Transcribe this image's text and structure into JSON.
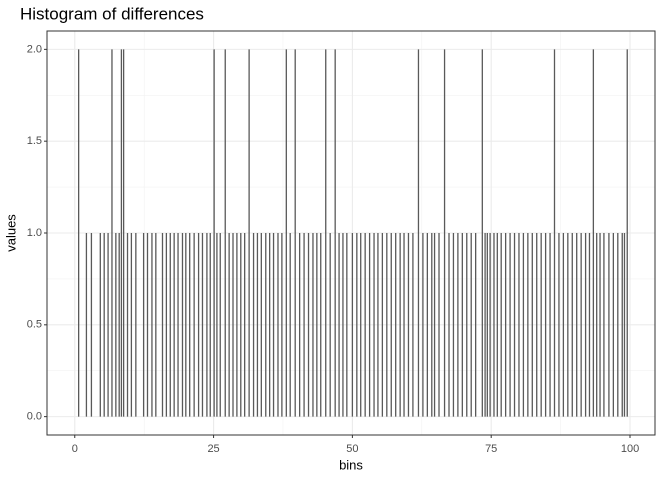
{
  "chart_data": {
    "type": "bar",
    "title": "Histogram of differences",
    "xlabel": "bins",
    "ylabel": "values",
    "x": [
      0.7,
      2.1,
      3.0,
      4.6,
      5.3,
      6.0,
      6.7,
      7.4,
      8.0,
      8.4,
      8.8,
      9.5,
      10.2,
      11.0,
      12.4,
      13.1,
      13.9,
      14.6,
      15.8,
      16.5,
      17.2,
      17.9,
      18.6,
      19.4,
      20.0,
      20.7,
      21.5,
      22.3,
      23.0,
      23.8,
      24.4,
      25.1,
      25.6,
      26.2,
      27.1,
      27.8,
      28.5,
      29.2,
      29.9,
      30.6,
      31.4,
      32.2,
      32.9,
      33.6,
      34.4,
      35.1,
      35.8,
      36.6,
      37.3,
      38.1,
      38.8,
      39.7,
      40.5,
      41.3,
      42.1,
      42.9,
      43.6,
      44.3,
      45.2,
      46.0,
      46.9,
      47.6,
      48.3,
      49.0,
      50.0,
      50.8,
      51.5,
      52.3,
      53.1,
      53.9,
      54.6,
      55.4,
      56.2,
      57.0,
      57.8,
      58.6,
      59.3,
      60.1,
      60.9,
      61.9,
      62.7,
      63.5,
      64.3,
      64.8,
      65.6,
      66.6,
      67.4,
      68.2,
      69.0,
      69.8,
      70.6,
      71.4,
      72.2,
      73.4,
      73.9,
      74.3,
      74.8,
      75.5,
      76.1,
      76.8,
      77.6,
      78.4,
      79.2,
      80.0,
      80.8,
      81.6,
      82.4,
      83.2,
      84.0,
      84.8,
      85.6,
      86.4,
      87.2,
      88.0,
      88.8,
      89.6,
      90.4,
      91.2,
      92.0,
      92.7,
      93.4,
      94.0,
      94.6,
      95.3,
      96.2,
      97.0,
      97.8,
      98.6,
      99.0,
      99.5
    ],
    "values": [
      2,
      1,
      1,
      1,
      1,
      1,
      2,
      1,
      1,
      2,
      2,
      1,
      1,
      1,
      1,
      1,
      1,
      1,
      1,
      1,
      1,
      1,
      1,
      1,
      1,
      1,
      1,
      1,
      1,
      1,
      1,
      2,
      1,
      1,
      2,
      1,
      1,
      1,
      1,
      1,
      2,
      1,
      1,
      1,
      1,
      1,
      1,
      1,
      1,
      2,
      1,
      2,
      1,
      1,
      1,
      1,
      1,
      1,
      2,
      1,
      2,
      1,
      1,
      1,
      1,
      1,
      1,
      1,
      1,
      1,
      1,
      1,
      1,
      1,
      1,
      1,
      1,
      1,
      1,
      2,
      1,
      1,
      1,
      1,
      1,
      2,
      1,
      1,
      1,
      1,
      1,
      1,
      1,
      2,
      1,
      1,
      1,
      1,
      1,
      1,
      1,
      1,
      1,
      1,
      1,
      1,
      1,
      1,
      1,
      1,
      1,
      2,
      1,
      1,
      1,
      1,
      1,
      1,
      1,
      1,
      2,
      1,
      1,
      1,
      1,
      1,
      1,
      1,
      1,
      2
    ],
    "color": "#595959",
    "xlim": [
      -5,
      104.5
    ],
    "xticks": [
      0,
      25,
      50,
      75,
      100
    ],
    "ylim": [
      -0.1,
      2.1
    ],
    "yticks": [
      {
        "value": 0,
        "label": "0.0"
      },
      {
        "value": 0.5,
        "label": "0.5"
      },
      {
        "value": 1,
        "label": "1.0"
      },
      {
        "value": 1.5,
        "label": "1.5"
      },
      {
        "value": 2,
        "label": "2.0"
      }
    ],
    "grid": true
  }
}
